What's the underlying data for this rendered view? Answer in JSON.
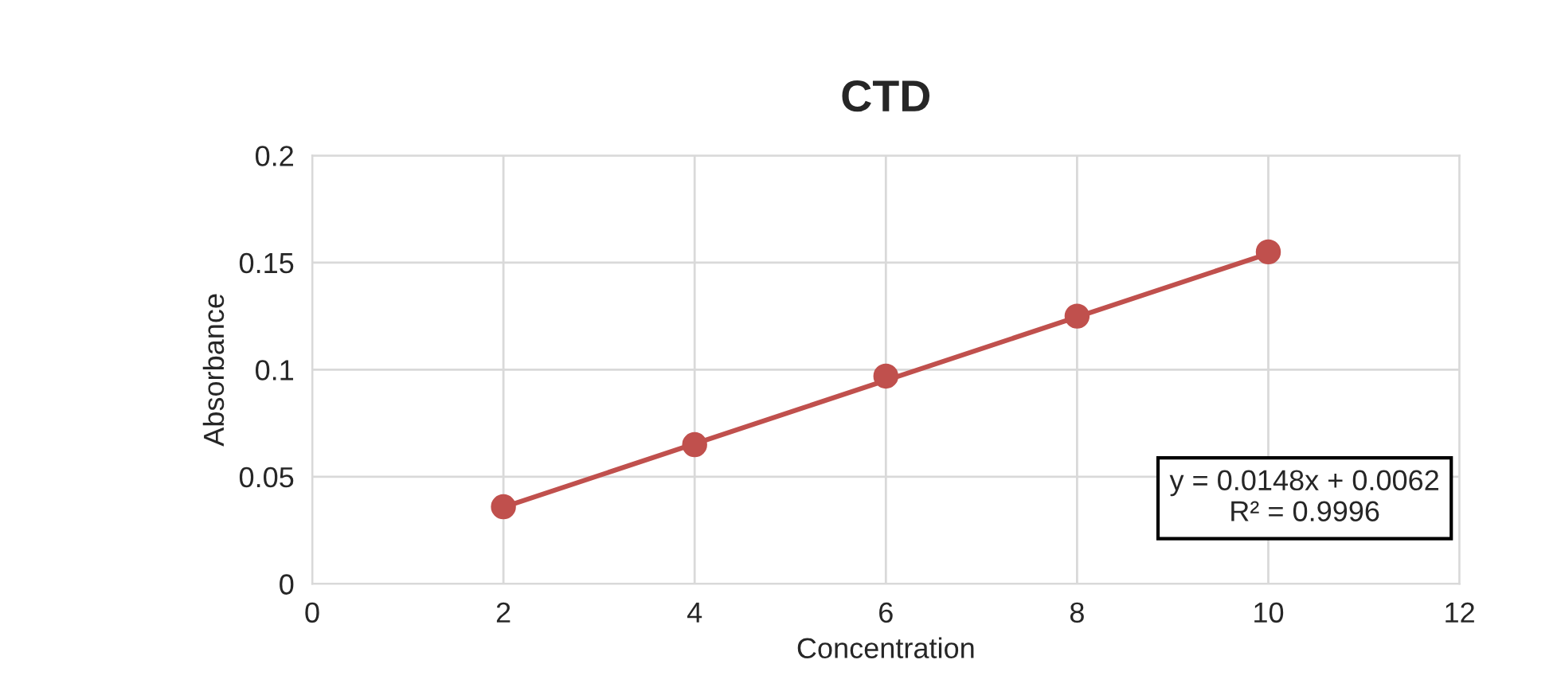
{
  "chart_data": {
    "type": "scatter",
    "title": "CTD",
    "xlabel": "Concentration",
    "ylabel": "Absorbance",
    "x": [
      2,
      4,
      6,
      8,
      10
    ],
    "series": [
      {
        "color": "#c0504d",
        "values": [
          0.036,
          0.065,
          0.097,
          0.125,
          0.155
        ],
        "marker": "circle"
      },
      {
        "type": "line",
        "color": "#c0504d",
        "x": [
          2,
          10
        ],
        "values": [
          0.0358,
          0.1542
        ],
        "marker": "none"
      }
    ],
    "annotations": [
      "y = 0.0148x + 0.0062\nR² = 0.9996"
    ],
    "xlim": [
      0,
      12
    ],
    "xticks": [
      0,
      2,
      4,
      6,
      8,
      10,
      12
    ],
    "ylim": [
      0,
      0.2
    ],
    "yticks": [
      0,
      0.05,
      0.1,
      0.15,
      0.2
    ],
    "grid": true
  }
}
